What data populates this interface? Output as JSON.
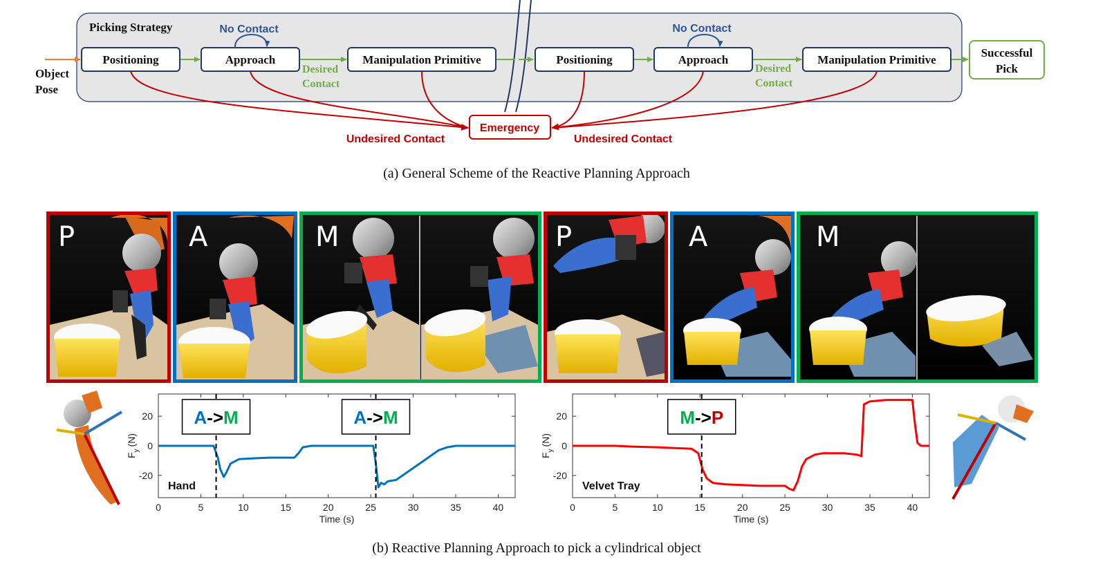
{
  "scheme": {
    "container_label": "Picking Strategy",
    "input_label_line1": "Object",
    "input_label_line2": "Pose",
    "left": {
      "positioning": "Positioning",
      "approach": "Approach",
      "manipulation": "Manipulation Primitive",
      "no_contact": "No Contact",
      "desired_line1": "Desired",
      "desired_line2": "Contact",
      "undesired": "Undesired Contact"
    },
    "right": {
      "positioning": "Positioning",
      "approach": "Approach",
      "manipulation": "Manipulation Primitive",
      "no_contact": "No Contact",
      "desired_line1": "Desired",
      "desired_line2": "Contact",
      "undesired": "Undesired Contact"
    },
    "emergency": "Emergency",
    "success_line1": "Successful",
    "success_line2": "Pick",
    "colors": {
      "box_border": "#1f3864",
      "green": "#70ad47",
      "red": "#c00000",
      "blue": "#2e5597",
      "container_fill": "#e7e6e6"
    }
  },
  "caption_a": "(a) General Scheme of the Reactive Planning Approach",
  "photos": [
    {
      "letter": "P",
      "border": "#c00000"
    },
    {
      "letter": "A",
      "border": "#0070c0"
    },
    {
      "letter": "M",
      "border": "#00b050"
    },
    {
      "letter": "P",
      "border": "#c00000"
    },
    {
      "letter": "A",
      "border": "#0070c0"
    },
    {
      "letter": "M",
      "border": "#00b050"
    }
  ],
  "chart_data": [
    {
      "type": "line",
      "xlabel": "Time (s)",
      "ylabel": "F",
      "ylabel_sub": "y",
      "ylabel_unit": "(N)",
      "xlim": [
        0,
        42
      ],
      "ylim": [
        -35,
        35
      ],
      "xticks": [
        0,
        5,
        10,
        15,
        20,
        25,
        30,
        35,
        40
      ],
      "yticks": [
        20,
        0,
        -20
      ],
      "annotation": "Hand",
      "color": "#0072bd",
      "transitions": [
        {
          "x": 6.8,
          "from": "A",
          "arrow": "->",
          "to": "M"
        },
        {
          "x": 25.6,
          "from": "A",
          "arrow": "->",
          "to": "M"
        }
      ],
      "series": [
        {
          "x": [
            0,
            2,
            5,
            6.5,
            7,
            7.3,
            7.7,
            8,
            8.5,
            9.5,
            11,
            13,
            16,
            16.5,
            17,
            18,
            20,
            22,
            24,
            25.3,
            25.6,
            25.9,
            26.2,
            26.6,
            27,
            28,
            29,
            30,
            31,
            32,
            33,
            34,
            35,
            36,
            38,
            40,
            42
          ],
          "y": [
            0,
            0,
            0,
            0,
            -8,
            -16,
            -21,
            -18,
            -12,
            -9,
            -8.5,
            -8,
            -8,
            -5,
            -1,
            0,
            0,
            0,
            0,
            0,
            -12,
            -28,
            -25,
            -26,
            -24,
            -23,
            -19,
            -15,
            -11,
            -7,
            -3,
            -1,
            0,
            0,
            0,
            0,
            0
          ]
        }
      ]
    },
    {
      "type": "line",
      "xlabel": "Time (s)",
      "ylabel": "F",
      "ylabel_sub": "y",
      "ylabel_unit": "(N)",
      "xlim": [
        0,
        42
      ],
      "ylim": [
        -35,
        35
      ],
      "xticks": [
        0,
        5,
        10,
        15,
        20,
        25,
        30,
        35,
        40
      ],
      "yticks": [
        20,
        0,
        -20
      ],
      "annotation": "Velvet Tray",
      "color": "#ff0000",
      "transitions": [
        {
          "x": 15.2,
          "from": "M",
          "arrow": "->",
          "to": "P"
        }
      ],
      "series": [
        {
          "x": [
            0,
            5,
            7,
            10,
            12,
            14,
            14.8,
            15.3,
            15.8,
            16.5,
            18,
            20,
            22,
            24,
            25,
            25.5,
            26,
            26.5,
            27,
            27.5,
            28.5,
            29.5,
            30.5,
            32,
            33.5,
            34,
            34.3,
            35,
            37,
            39,
            40,
            40.3,
            40.6,
            41,
            42
          ],
          "y": [
            0,
            0,
            -0.5,
            -1,
            -1.5,
            -2,
            -5,
            -16,
            -22,
            -25,
            -26,
            -26.5,
            -27,
            -27,
            -27,
            -29,
            -30,
            -24,
            -14,
            -9,
            -6,
            -5,
            -5,
            -5,
            -6,
            -7,
            28,
            30,
            31,
            31,
            31,
            15,
            2,
            0,
            0
          ]
        }
      ]
    }
  ],
  "caption_b": "(b) Reactive Planning Approach to pick a cylindrical object"
}
